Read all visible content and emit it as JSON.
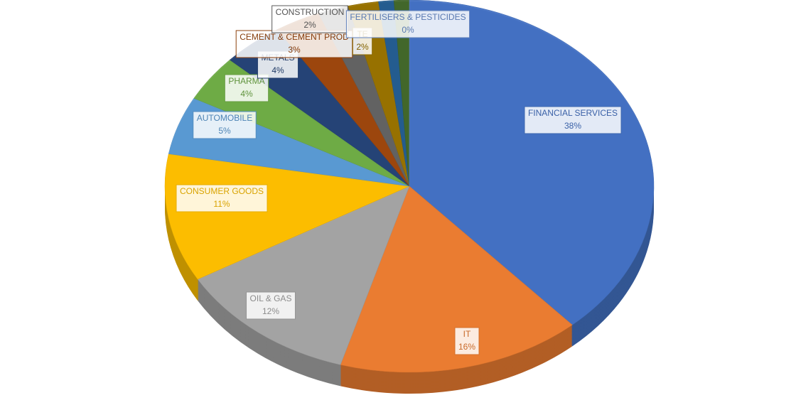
{
  "chart_data": {
    "type": "pie3d",
    "categories": [
      "FINANCIAL SERVICES",
      "IT",
      "OIL & GAS",
      "CONSUMER GOODS",
      "AUTOMOBILE",
      "PHARMA",
      "METALS",
      "CEMENT & CEMENT PROD",
      "CONSTRUCTION",
      "TE",
      null,
      null,
      "FERTILISERS & PESTICIDES"
    ],
    "values": [
      38,
      16,
      12,
      11,
      5,
      4,
      4,
      3,
      2,
      2,
      1,
      1,
      0
    ],
    "value_labels": [
      "38%",
      "16%",
      "12%",
      "11%",
      "5%",
      "4%",
      "4%",
      "3%",
      "2%",
      "2%",
      null,
      null,
      "0%"
    ],
    "colors": [
      "#4472c4",
      "#ed7d31",
      "#a5a5a5",
      "#ffc000",
      "#5b9bd5",
      "#70ad47",
      "#264478",
      "#9e480e",
      "#636363",
      "#997300",
      "#255e91",
      "#43682b",
      "#698ed0"
    ]
  }
}
